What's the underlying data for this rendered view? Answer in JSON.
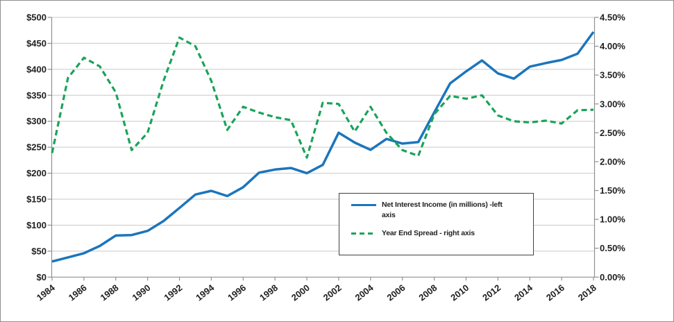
{
  "chart_data": {
    "type": "line",
    "title": "",
    "grid": true,
    "x": [
      1984,
      1985,
      1986,
      1987,
      1988,
      1989,
      1990,
      1991,
      1992,
      1993,
      1994,
      1995,
      1996,
      1997,
      1998,
      1999,
      2000,
      2001,
      2002,
      2003,
      2004,
      2005,
      2006,
      2007,
      2008,
      2009,
      2010,
      2011,
      2012,
      2013,
      2014,
      2015,
      2016,
      2017,
      2018
    ],
    "x_axis": {
      "tick_labels": [
        "1984",
        "1986",
        "1988",
        "1990",
        "1992",
        "1994",
        "1996",
        "1998",
        "2000",
        "2002",
        "2004",
        "2006",
        "2008",
        "2010",
        "2012",
        "2014",
        "2016",
        "2018"
      ]
    },
    "left_axis": {
      "min": 0,
      "max": 500,
      "step": 50,
      "tick_labels": [
        "$0",
        "$50",
        "$100",
        "$150",
        "$200",
        "$250",
        "$300",
        "$350",
        "$400",
        "$450",
        "$500"
      ]
    },
    "right_axis": {
      "min": 0,
      "max": 4.5,
      "step": 0.5,
      "tick_labels": [
        "0.00%",
        "0.50%",
        "1.00%",
        "1.50%",
        "2.00%",
        "2.50%",
        "3.00%",
        "3.50%",
        "4.00%",
        "4.50%"
      ]
    },
    "series": [
      {
        "name": "Net Interest Income (in millions) -left axis",
        "axis": "left",
        "style": "solid",
        "color": "#1b75bc",
        "values": [
          30,
          38,
          46,
          60,
          80,
          81,
          89,
          108,
          133,
          159,
          166,
          156,
          173,
          201,
          207,
          210,
          200,
          216,
          278,
          259,
          245,
          266,
          257,
          260,
          317,
          373,
          396,
          417,
          392,
          382,
          405,
          412,
          418,
          430,
          472
        ]
      },
      {
        "name": "Year End Spread - right axis",
        "axis": "right",
        "style": "dashed",
        "color": "#1aa35a",
        "values": [
          2.15,
          3.45,
          3.8,
          3.65,
          3.2,
          2.2,
          2.5,
          3.4,
          4.15,
          4.0,
          3.4,
          2.55,
          2.95,
          2.85,
          2.77,
          2.72,
          2.07,
          3.02,
          3.0,
          2.52,
          2.95,
          2.5,
          2.2,
          2.1,
          2.82,
          3.14,
          3.09,
          3.15,
          2.8,
          2.7,
          2.68,
          2.71,
          2.66,
          2.89,
          2.9
        ]
      }
    ],
    "legend_position": "inside-lower-middle"
  },
  "legend": {
    "item1_line1": "Net Interest Income (in millions) -left",
    "item1_line2": "axis",
    "item2": "Year End Spread - right axis"
  },
  "colors": {
    "net_interest_income_line": "#1b75bc",
    "year_end_spread_line": "#1aa35a",
    "gridline": "#c9c9c9",
    "axis_line": "#8f8f8f",
    "text": "#1f1f1f",
    "legend_border": "#404040"
  }
}
